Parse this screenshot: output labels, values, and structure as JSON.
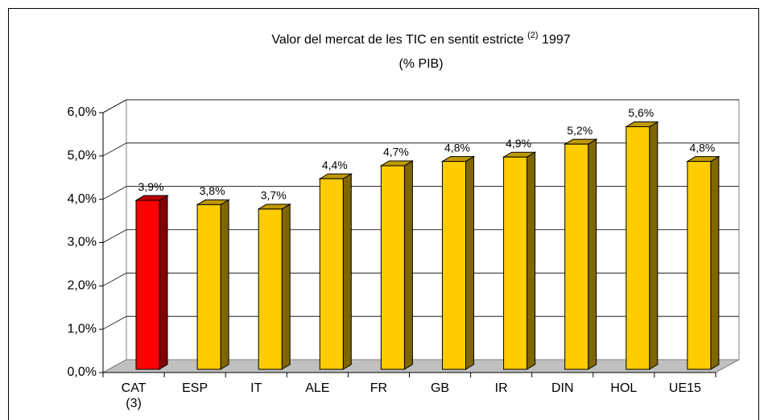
{
  "chart_data": {
    "type": "bar3d",
    "title": "Valor del mercat de les TIC en sentit estricte",
    "title_note": "(2)",
    "title_year": "1997",
    "subtitle": "(% PIB)",
    "categories": [
      "CAT\n(3)",
      "ESP",
      "IT",
      "ALE",
      "FR",
      "GB",
      "IR",
      "DIN",
      "HOL",
      "UE15"
    ],
    "values": [
      3.9,
      3.8,
      3.7,
      4.4,
      4.7,
      4.8,
      4.9,
      5.2,
      5.6,
      4.8
    ],
    "value_labels": [
      "3,9%",
      "3,8%",
      "3,7%",
      "4,4%",
      "4,7%",
      "4,8%",
      "4,9%",
      "5,2%",
      "5,6%",
      "4,8%"
    ],
    "colors": [
      "#ff0000",
      "#ffcc00",
      "#ffcc00",
      "#ffcc00",
      "#ffcc00",
      "#ffcc00",
      "#ffcc00",
      "#ffcc00",
      "#ffcc00",
      "#ffcc00"
    ],
    "ylim": [
      0,
      6
    ],
    "yticks": [
      {
        "value": 0,
        "label": "0,0%"
      },
      {
        "value": 1,
        "label": "1,0%"
      },
      {
        "value": 2,
        "label": "2,0%"
      },
      {
        "value": 3,
        "label": "3,0%"
      },
      {
        "value": 4,
        "label": "4,0%"
      },
      {
        "value": 5,
        "label": "5,0%"
      },
      {
        "value": 6,
        "label": "6,0%"
      }
    ],
    "grid": true
  }
}
